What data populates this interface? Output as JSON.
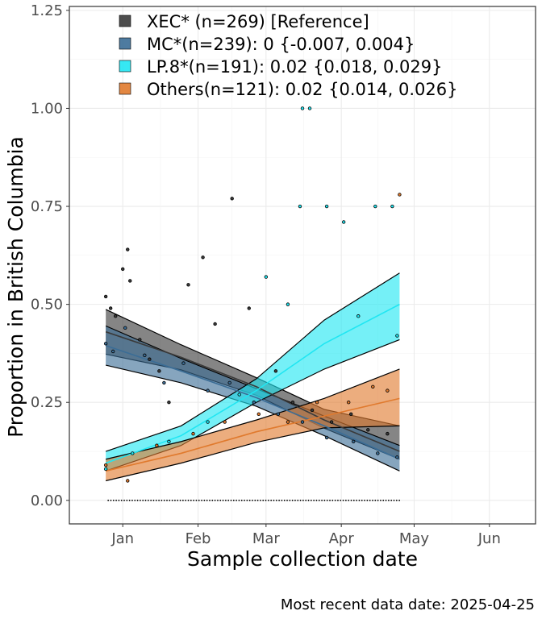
{
  "chart_data": {
    "type": "line",
    "title": "",
    "xlabel": "Sample collection date",
    "ylabel": "Proportion in British Columbia",
    "caption": "Most recent data date: 2025-04-25",
    "x_ticks": [
      {
        "label": "Jan",
        "value": "2025-01-01"
      },
      {
        "label": "Feb",
        "value": "2025-02-01"
      },
      {
        "label": "Mar",
        "value": "2025-03-01"
      },
      {
        "label": "Apr",
        "value": "2025-04-01"
      },
      {
        "label": "May",
        "value": "2025-05-01"
      },
      {
        "label": "Jun",
        "value": "2025-06-01"
      }
    ],
    "xlim": [
      "2024-12-10",
      "2025-06-20"
    ],
    "y_ticks": [
      "0.00",
      "0.25",
      "0.50",
      "0.75",
      "1.00",
      "1.25"
    ],
    "ylim": [
      -0.06,
      1.26
    ],
    "grid": true,
    "legend_position": "top-left (inside plot)",
    "series": [
      {
        "name": "XEC* (n=269)  [Reference]",
        "color": "#3a3a3a",
        "fit": [
          {
            "x": "2024-12-25",
            "y": 0.43,
            "lo": 0.373,
            "hi": 0.487
          },
          {
            "x": "2025-01-25",
            "y": 0.365,
            "lo": 0.333,
            "hi": 0.397
          },
          {
            "x": "2025-02-25",
            "y": 0.29,
            "lo": 0.268,
            "hi": 0.313
          },
          {
            "x": "2025-03-25",
            "y": 0.205,
            "lo": 0.184,
            "hi": 0.232
          },
          {
            "x": "2025-04-25",
            "y": 0.125,
            "lo": 0.105,
            "hi": 0.19
          }
        ],
        "points": [
          {
            "x": "2024-12-25",
            "y": 0.52
          },
          {
            "x": "2024-12-27",
            "y": 0.49
          },
          {
            "x": "2024-12-29",
            "y": 0.47
          },
          {
            "x": "2025-01-01",
            "y": 0.59
          },
          {
            "x": "2025-01-04",
            "y": 0.56
          },
          {
            "x": "2025-01-03",
            "y": 0.64
          },
          {
            "x": "2025-01-08",
            "y": 0.41
          },
          {
            "x": "2025-01-12",
            "y": 0.36
          },
          {
            "x": "2025-01-16",
            "y": 0.33
          },
          {
            "x": "2025-01-20",
            "y": 0.25
          },
          {
            "x": "2025-01-28",
            "y": 0.55
          },
          {
            "x": "2025-02-03",
            "y": 0.62
          },
          {
            "x": "2025-02-08",
            "y": 0.45
          },
          {
            "x": "2025-02-15",
            "y": 0.77
          },
          {
            "x": "2025-02-22",
            "y": 0.49
          },
          {
            "x": "2025-03-05",
            "y": 0.33
          },
          {
            "x": "2025-03-12",
            "y": 0.25
          },
          {
            "x": "2025-03-20",
            "y": 0.23
          },
          {
            "x": "2025-03-28",
            "y": 0.2
          },
          {
            "x": "2025-04-05",
            "y": 0.22
          },
          {
            "x": "2025-04-12",
            "y": 0.18
          },
          {
            "x": "2025-04-20",
            "y": 0.17
          }
        ]
      },
      {
        "name": "MC*(n=239): 0 {-0.007, 0.004}",
        "color": "#3b6d96",
        "fit": [
          {
            "x": "2024-12-25",
            "y": 0.395,
            "lo": 0.345,
            "hi": 0.445
          },
          {
            "x": "2025-01-25",
            "y": 0.33,
            "lo": 0.3,
            "hi": 0.362
          },
          {
            "x": "2025-02-25",
            "y": 0.262,
            "lo": 0.24,
            "hi": 0.285
          },
          {
            "x": "2025-03-25",
            "y": 0.19,
            "lo": 0.165,
            "hi": 0.215
          },
          {
            "x": "2025-04-25",
            "y": 0.105,
            "lo": 0.075,
            "hi": 0.14
          }
        ],
        "points": [
          {
            "x": "2024-12-25",
            "y": 0.4
          },
          {
            "x": "2024-12-28",
            "y": 0.38
          },
          {
            "x": "2025-01-02",
            "y": 0.44
          },
          {
            "x": "2025-01-10",
            "y": 0.37
          },
          {
            "x": "2025-01-18",
            "y": 0.3
          },
          {
            "x": "2025-01-26",
            "y": 0.35
          },
          {
            "x": "2025-02-05",
            "y": 0.28
          },
          {
            "x": "2025-02-14",
            "y": 0.3
          },
          {
            "x": "2025-02-24",
            "y": 0.25
          },
          {
            "x": "2025-03-06",
            "y": 0.22
          },
          {
            "x": "2025-03-16",
            "y": 0.2
          },
          {
            "x": "2025-03-26",
            "y": 0.16
          },
          {
            "x": "2025-04-06",
            "y": 0.15
          },
          {
            "x": "2025-04-16",
            "y": 0.12
          },
          {
            "x": "2025-04-24",
            "y": 0.11
          }
        ]
      },
      {
        "name": "LP.8*(n=191): 0.02 {0.018, 0.029}",
        "color": "#20e6f2",
        "fit": [
          {
            "x": "2024-12-25",
            "y": 0.095,
            "lo": 0.075,
            "hi": 0.125
          },
          {
            "x": "2025-01-25",
            "y": 0.165,
            "lo": 0.14,
            "hi": 0.19
          },
          {
            "x": "2025-02-25",
            "y": 0.28,
            "lo": 0.25,
            "hi": 0.31
          },
          {
            "x": "2025-03-25",
            "y": 0.4,
            "lo": 0.335,
            "hi": 0.46
          },
          {
            "x": "2025-04-25",
            "y": 0.5,
            "lo": 0.41,
            "hi": 0.58
          }
        ],
        "points": [
          {
            "x": "2024-12-25",
            "y": 0.08
          },
          {
            "x": "2025-01-05",
            "y": 0.12
          },
          {
            "x": "2025-01-20",
            "y": 0.15
          },
          {
            "x": "2025-02-05",
            "y": 0.2
          },
          {
            "x": "2025-02-18",
            "y": 0.27
          },
          {
            "x": "2025-03-01",
            "y": 0.57
          },
          {
            "x": "2025-03-10",
            "y": 0.5
          },
          {
            "x": "2025-03-16",
            "y": 1.0
          },
          {
            "x": "2025-03-19",
            "y": 1.0
          },
          {
            "x": "2025-03-15",
            "y": 0.75
          },
          {
            "x": "2025-03-26",
            "y": 0.75
          },
          {
            "x": "2025-04-02",
            "y": 0.71
          },
          {
            "x": "2025-04-08",
            "y": 0.47
          },
          {
            "x": "2025-04-15",
            "y": 0.75
          },
          {
            "x": "2025-04-22",
            "y": 0.75
          },
          {
            "x": "2025-04-24",
            "y": 0.42
          }
        ]
      },
      {
        "name": "Others(n=121): 0.02 {0.014, 0.026}",
        "color": "#e07a2e",
        "fit": [
          {
            "x": "2024-12-25",
            "y": 0.075,
            "lo": 0.05,
            "hi": 0.105
          },
          {
            "x": "2025-01-25",
            "y": 0.12,
            "lo": 0.095,
            "hi": 0.15
          },
          {
            "x": "2025-02-25",
            "y": 0.175,
            "lo": 0.148,
            "hi": 0.205
          },
          {
            "x": "2025-03-25",
            "y": 0.215,
            "lo": 0.185,
            "hi": 0.26
          },
          {
            "x": "2025-04-25",
            "y": 0.26,
            "lo": 0.19,
            "hi": 0.335
          }
        ],
        "points": [
          {
            "x": "2024-12-25",
            "y": 0.09
          },
          {
            "x": "2025-01-03",
            "y": 0.05
          },
          {
            "x": "2025-01-15",
            "y": 0.14
          },
          {
            "x": "2025-01-30",
            "y": 0.17
          },
          {
            "x": "2025-02-12",
            "y": 0.2
          },
          {
            "x": "2025-02-26",
            "y": 0.22
          },
          {
            "x": "2025-03-10",
            "y": 0.2
          },
          {
            "x": "2025-03-22",
            "y": 0.25
          },
          {
            "x": "2025-04-04",
            "y": 0.25
          },
          {
            "x": "2025-04-14",
            "y": 0.29
          },
          {
            "x": "2025-04-25",
            "y": 0.78
          },
          {
            "x": "2025-04-20",
            "y": 0.28
          }
        ]
      }
    ]
  }
}
